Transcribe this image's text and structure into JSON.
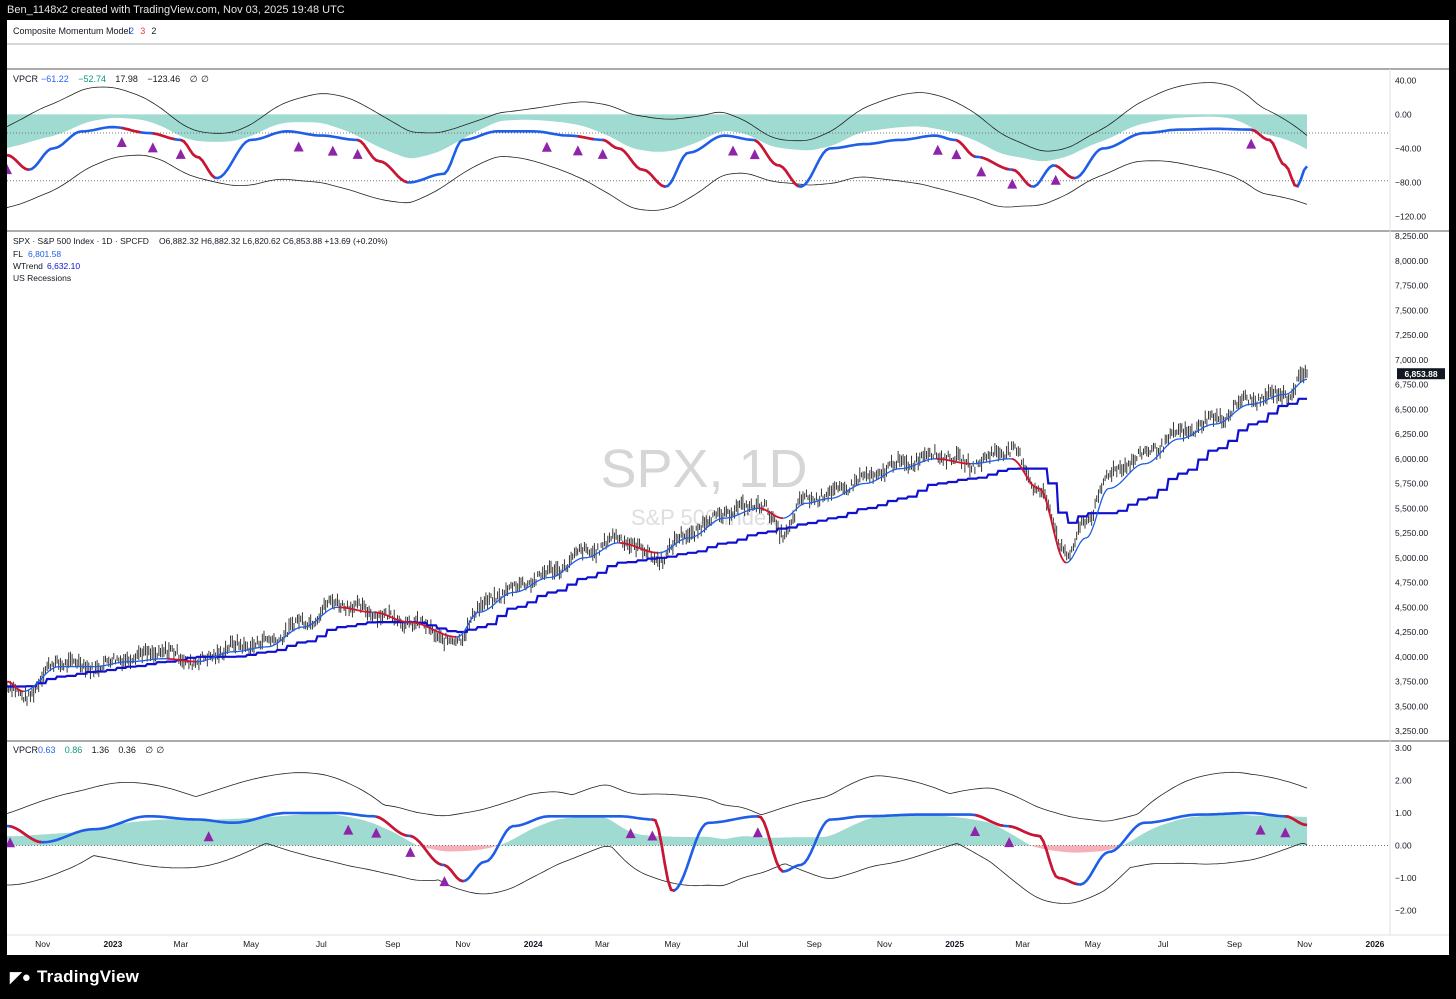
{
  "header": {
    "credit": "Ben_1148x2 created with TradingView.com, Nov 03, 2025 19:48 UTC"
  },
  "footer": {
    "brand": "TradingView",
    "brand_icon": "tradingview-logo-icon"
  },
  "panes": {
    "composite": {
      "name": "Composite Momentum Model",
      "params": [
        "2",
        "3",
        "2"
      ],
      "param_colors": [
        "#2962ff",
        "#f23645",
        "#131722"
      ]
    },
    "vpcr_top": {
      "name": "VPCR",
      "values": [
        "−61.22",
        "−52.74",
        "17.98",
        "−123.46",
        "∅",
        "∅"
      ],
      "value_colors": [
        "#2962ff",
        "#089981",
        "#131722",
        "#131722",
        "#131722",
        "#131722"
      ],
      "axis_labels": [
        "40.00",
        "0.00",
        "−40.00",
        "−80.00",
        "−120.00"
      ]
    },
    "main": {
      "title": "SPX · S&P 500 Index · 1D · SPCFD",
      "ohlc": "O6,882.32  H6,882.32  L6,820.62  C6,853.88  +13.69 (+0.20%)",
      "fl_label": "FL",
      "fl_value": "6,801.58",
      "wtrend_label": "WTrend",
      "wtrend_value": "6,632.10",
      "recessions": "US Recessions",
      "watermark_symbol": "SPX, 1D",
      "watermark_name": "S&P 500 Index",
      "last_price": "6,853.88",
      "axis_labels": [
        "8,250.00",
        "8,000.00",
        "7,750.00",
        "7,500.00",
        "7,250.00",
        "7,000.00",
        "6,750.00",
        "6,500.00",
        "6,250.00",
        "6,000.00",
        "5,750.00",
        "5,500.00",
        "5,250.00",
        "5,000.00",
        "4,750.00",
        "4,500.00",
        "4,250.00",
        "4,000.00",
        "3,750.00",
        "3,500.00",
        "3,250.00"
      ]
    },
    "vpcr_bottom": {
      "name": "VPCR",
      "values": [
        "0.63",
        "0.86",
        "1.36",
        "0.36",
        "∅",
        "∅"
      ],
      "value_colors": [
        "#2962ff",
        "#089981",
        "#131722",
        "#131722",
        "#131722",
        "#131722"
      ],
      "axis_labels": [
        "3.00",
        "2.00",
        "1.00",
        "0.00",
        "−1.00",
        "−2.00"
      ]
    }
  },
  "time_axis": [
    "Nov",
    "2023",
    "Mar",
    "May",
    "Jul",
    "Sep",
    "Nov",
    "2024",
    "Mar",
    "May",
    "Jul",
    "Sep",
    "Nov",
    "2025",
    "Mar",
    "May",
    "Jul",
    "Sep",
    "Nov",
    "2026"
  ],
  "colors": {
    "blue_line": "#1e5ee8",
    "wtrend": "#1010d0",
    "fl_red": "#d0142c",
    "cloud": "#7fcfc0",
    "negative_cloud": "#f4a3ac",
    "signal": "#8e24aa"
  },
  "chart_data": [
    {
      "type": "line",
      "pane": "vpcr_top",
      "title": "VPCR",
      "ylim": [
        -130,
        45
      ],
      "x": [
        "2022-10-01",
        "2022-10-20",
        "2022-11-10",
        "2022-12-05",
        "2023-01-01",
        "2023-02-01",
        "2023-03-01",
        "2023-03-15",
        "2023-04-01",
        "2023-05-01",
        "2023-06-01",
        "2023-07-01",
        "2023-08-01",
        "2023-08-20",
        "2023-09-15",
        "2023-10-15",
        "2023-11-01",
        "2023-12-01",
        "2024-01-01",
        "2024-02-01",
        "2024-03-01",
        "2024-03-15",
        "2024-04-05",
        "2024-04-25",
        "2024-05-15",
        "2024-06-15",
        "2024-07-10",
        "2024-08-01",
        "2024-08-20",
        "2024-09-15",
        "2024-10-15",
        "2024-11-15",
        "2024-12-15",
        "2025-01-01",
        "2025-01-20",
        "2025-02-20",
        "2025-03-10",
        "2025-03-28",
        "2025-04-15",
        "2025-05-10",
        "2025-06-15",
        "2025-07-15",
        "2025-08-15",
        "2025-09-15",
        "2025-10-01",
        "2025-10-15",
        "2025-10-25",
        "2025-11-03"
      ],
      "series": [
        {
          "values": [
            -48,
            -65,
            -40,
            -20,
            -15,
            -22,
            -30,
            -50,
            -75,
            -30,
            -20,
            -25,
            -30,
            -55,
            -80,
            -70,
            -30,
            -20,
            -20,
            -25,
            -30,
            -40,
            -65,
            -85,
            -45,
            -25,
            -30,
            -60,
            -85,
            -40,
            -35,
            -30,
            -25,
            -30,
            -50,
            -65,
            -85,
            -60,
            -75,
            -40,
            -22,
            -18,
            -17,
            -18,
            -30,
            -60,
            -85,
            -61
          ]
        }
      ]
    },
    {
      "type": "line",
      "pane": "main",
      "title": "SPX · S&P 500 Index · 1D · SPCFD",
      "ylim": [
        3250,
        8250
      ],
      "x": [
        "2022-10-01",
        "2022-10-15",
        "2022-11-15",
        "2022-12-15",
        "2023-01-15",
        "2023-02-15",
        "2023-03-15",
        "2023-04-15",
        "2023-05-15",
        "2023-06-15",
        "2023-07-15",
        "2023-08-15",
        "2023-09-15",
        "2023-10-27",
        "2023-11-15",
        "2023-12-15",
        "2024-01-15",
        "2024-02-15",
        "2024-03-15",
        "2024-04-19",
        "2024-05-15",
        "2024-06-15",
        "2024-07-15",
        "2024-08-05",
        "2024-08-25",
        "2024-09-15",
        "2024-10-15",
        "2024-11-15",
        "2024-12-15",
        "2025-01-15",
        "2025-02-19",
        "2025-03-15",
        "2025-04-08",
        "2025-04-25",
        "2025-05-15",
        "2025-06-15",
        "2025-07-15",
        "2025-08-15",
        "2025-09-15",
        "2025-10-15",
        "2025-11-03"
      ],
      "series": [
        {
          "name": "SPX",
          "values": [
            3700,
            3600,
            3950,
            3900,
            4000,
            4050,
            3950,
            4100,
            4150,
            4350,
            4550,
            4450,
            4350,
            4150,
            4500,
            4700,
            4850,
            5050,
            5200,
            5000,
            5250,
            5450,
            5550,
            5250,
            5600,
            5650,
            5800,
            5950,
            6050,
            5950,
            6100,
            5700,
            5050,
            5350,
            5850,
            6050,
            6250,
            6400,
            6600,
            6650,
            6853.88
          ]
        },
        {
          "name": "FL",
          "values": [
            3750,
            3650,
            3900,
            3900,
            3950,
            3980,
            3950,
            4050,
            4100,
            4300,
            4500,
            4450,
            4350,
            4200,
            4450,
            4650,
            4800,
            5000,
            5150,
            5050,
            5200,
            5400,
            5500,
            5400,
            5550,
            5600,
            5750,
            5900,
            6000,
            5950,
            6000,
            5700,
            4950,
            5200,
            5700,
            5950,
            6200,
            6350,
            6550,
            6650,
            6801.58
          ]
        },
        {
          "name": "WTrend",
          "values": [
            3700,
            3700,
            3800,
            3850,
            3900,
            3950,
            4000,
            4000,
            4050,
            4150,
            4300,
            4350,
            4350,
            4250,
            4300,
            4500,
            4650,
            4800,
            4950,
            5000,
            5050,
            5150,
            5250,
            5300,
            5350,
            5400,
            5500,
            5600,
            5750,
            5800,
            5900,
            5900,
            5350,
            5450,
            5450,
            5600,
            5850,
            6100,
            6350,
            6550,
            6632.1
          ]
        }
      ]
    },
    {
      "type": "line",
      "pane": "vpcr_bottom",
      "title": "VPCR",
      "ylim": [
        -2.6,
        3.0
      ],
      "x": [
        "2022-10-01",
        "2022-11-01",
        "2022-12-15",
        "2023-02-01",
        "2023-03-15",
        "2023-04-15",
        "2023-06-01",
        "2023-07-15",
        "2023-08-15",
        "2023-09-15",
        "2023-10-15",
        "2023-11-01",
        "2023-11-20",
        "2023-12-15",
        "2024-01-15",
        "2024-02-15",
        "2024-03-15",
        "2024-04-15",
        "2024-05-01",
        "2024-06-01",
        "2024-07-15",
        "2024-08-05",
        "2024-08-20",
        "2024-09-15",
        "2024-10-15",
        "2024-12-01",
        "2025-01-15",
        "2025-02-15",
        "2025-03-15",
        "2025-04-01",
        "2025-04-20",
        "2025-05-15",
        "2025-06-15",
        "2025-08-01",
        "2025-09-15",
        "2025-10-15",
        "2025-11-03"
      ],
      "series": [
        {
          "values": [
            0.6,
            0.1,
            0.5,
            0.9,
            0.8,
            0.7,
            1.0,
            1.0,
            0.9,
            0.3,
            -0.6,
            -1.1,
            -0.5,
            0.6,
            0.9,
            0.9,
            0.9,
            0.8,
            -1.4,
            0.7,
            0.9,
            -0.8,
            -0.6,
            0.8,
            0.9,
            0.95,
            0.95,
            0.6,
            0.3,
            -1.0,
            -1.2,
            -0.2,
            0.7,
            0.95,
            1.0,
            0.9,
            0.63
          ]
        }
      ]
    }
  ]
}
